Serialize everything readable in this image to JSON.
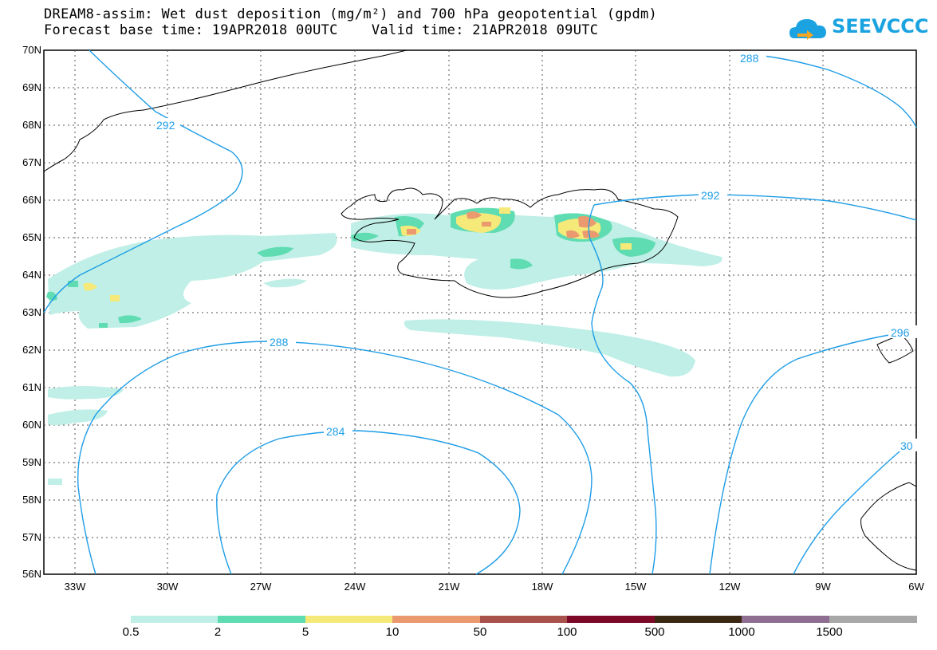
{
  "title_line1": "DREAM8-assim: Wet dust deposition (mg/m²) and 700 hPa geopotential (gpdm)",
  "title_line2": "Forecast base time: 19APR2018 00UTC    Valid time: 21APR2018 09UTC",
  "logo_text": "SEEVCCC",
  "lat_labels": [
    "70N",
    "69N",
    "68N",
    "67N",
    "66N",
    "65N",
    "64N",
    "63N",
    "62N",
    "61N",
    "60N",
    "59N",
    "58N",
    "57N",
    "56N"
  ],
  "lon_labels": [
    "33W",
    "30W",
    "27W",
    "24W",
    "21W",
    "18W",
    "15W",
    "12W",
    "9W",
    "6W"
  ],
  "contour_labels": [
    "288",
    "292",
    "288",
    "284",
    "292",
    "296",
    "30"
  ],
  "colorbar": {
    "colors": [
      "#bfefe6",
      "#5fdcb2",
      "#f5ea79",
      "#ea9a6e",
      "#a9524c",
      "#7d0828",
      "#3b2812",
      "#8e6f92",
      "#a8a8a8"
    ],
    "labels": [
      "0.5",
      "2",
      "5",
      "10",
      "50",
      "100",
      "500",
      "1000",
      "1500"
    ]
  },
  "colors": {
    "contour": "#1e9de6",
    "coast": "#000000"
  }
}
